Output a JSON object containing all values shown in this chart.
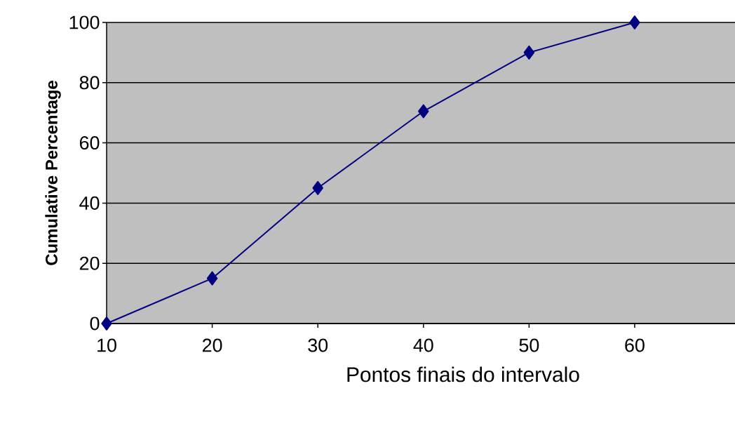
{
  "chart_data": {
    "type": "line",
    "xlabel": "Pontos finais do intervalo",
    "ylabel": "Cumulative Percentage",
    "x": [
      10,
      20,
      30,
      40,
      50,
      60
    ],
    "series": [
      {
        "color": "#000080",
        "values": [
          0,
          15,
          45,
          70.5,
          90,
          100
        ]
      }
    ],
    "xlim": [
      10,
      69.5
    ],
    "ylim": [
      0,
      100
    ],
    "xticks": [
      10,
      20,
      30,
      40,
      50,
      60
    ],
    "yticks": [
      0,
      20,
      40,
      60,
      80,
      100
    ],
    "grid": "y",
    "marker": "diamond",
    "line_style": "solid"
  }
}
